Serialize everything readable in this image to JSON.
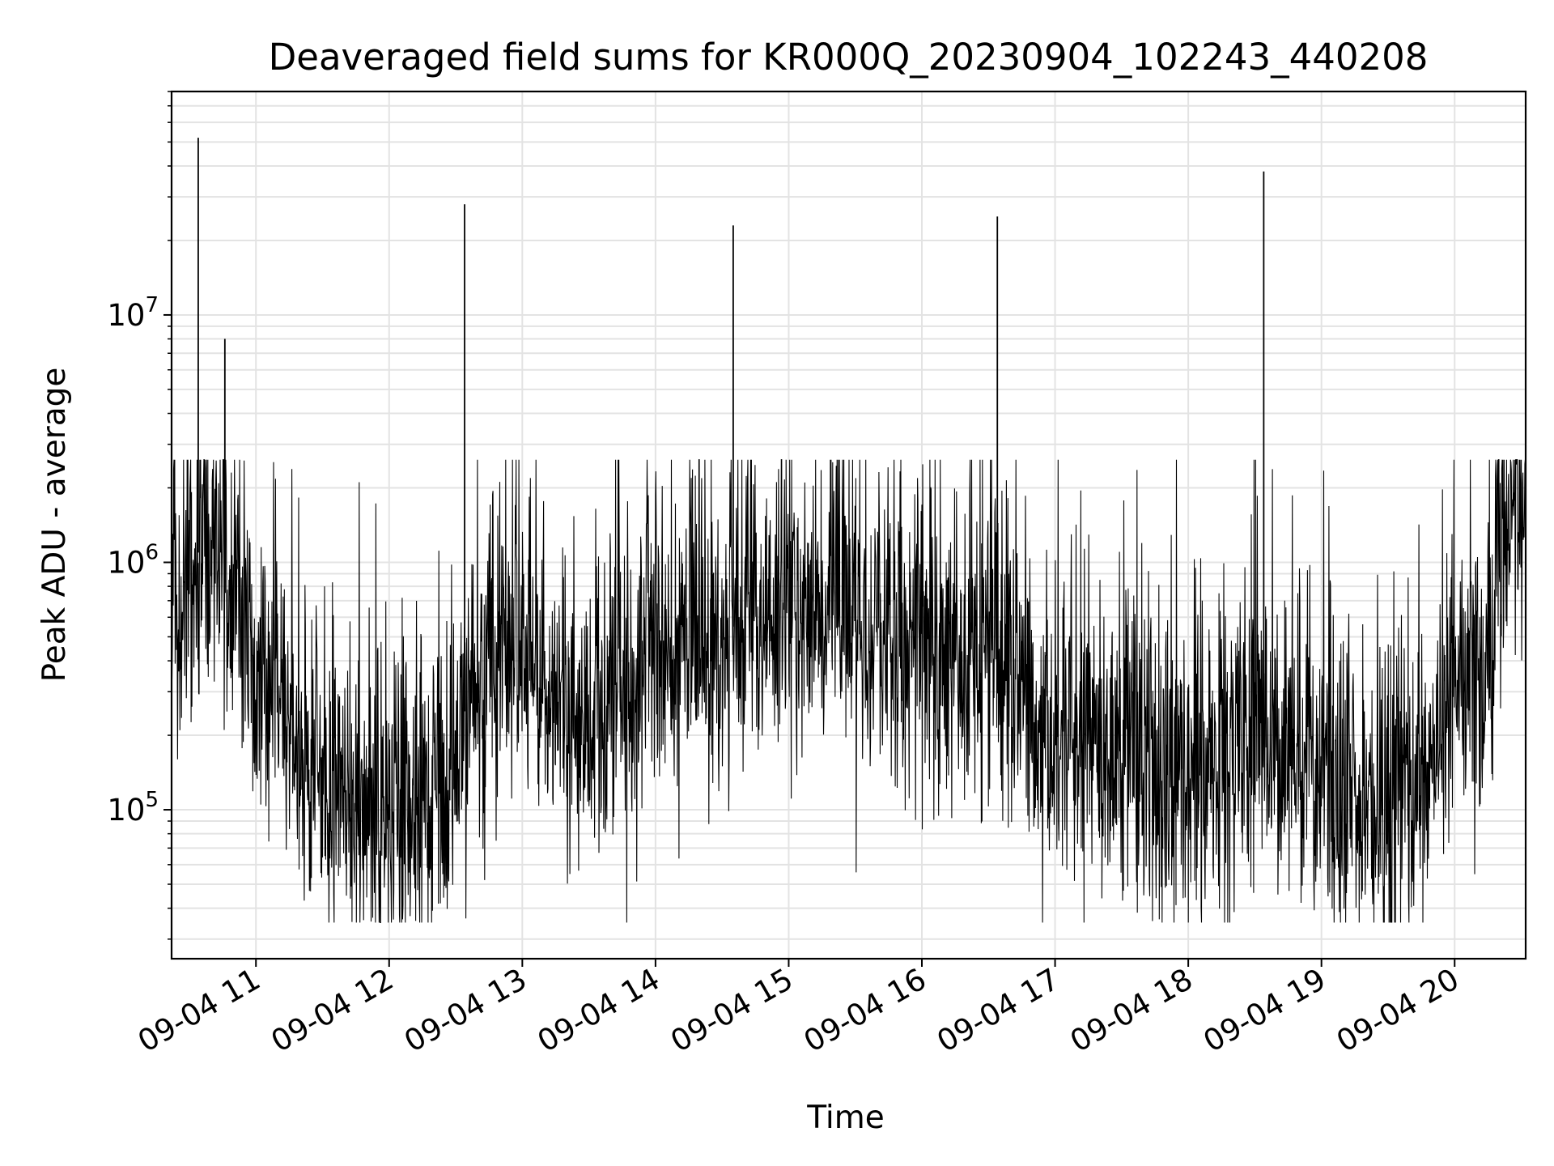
{
  "chart_data": {
    "type": "line",
    "title": "Deaveraged field sums for KR000Q_20230904_102243_440208",
    "xlabel": "Time",
    "ylabel": "Peak ADU - average",
    "yscale": "log",
    "ylim": [
      25000,
      80000000
    ],
    "xlim": [
      "2023-09-04 10:22",
      "2023-09-04 20:32"
    ],
    "x_ticks": [
      "09-04 11",
      "09-04 12",
      "09-04 13",
      "09-04 14",
      "09-04 15",
      "09-04 16",
      "09-04 17",
      "09-04 18",
      "09-04 19",
      "09-04 20"
    ],
    "y_ticks": [
      {
        "base": "10",
        "exp": "5",
        "value": 100000
      },
      {
        "base": "10",
        "exp": "6",
        "value": 1000000
      },
      {
        "base": "10",
        "exp": "7",
        "value": 10000000
      }
    ],
    "grid": true,
    "legend": "none",
    "line_color": "#000000",
    "series": [
      {
        "x": [
          "2023-09-04 10:22",
          "2023-09-04 10:26",
          "2023-09-04 10:29",
          "2023-09-04 10:32",
          "2023-09-04 10:34",
          "2023-09-04 10:36",
          "2023-09-04 10:38",
          "2023-09-04 10:42",
          "2023-09-04 10:45",
          "2023-09-04 10:46",
          "2023-09-04 10:48",
          "2023-09-04 10:52",
          "2023-09-04 10:56",
          "2023-09-04 11:00",
          "2023-09-04 11:03",
          "2023-09-04 11:08",
          "2023-09-04 11:15",
          "2023-09-04 11:22",
          "2023-09-04 11:30",
          "2023-09-04 11:38",
          "2023-09-04 11:42",
          "2023-09-04 11:45",
          "2023-09-04 11:50",
          "2023-09-04 12:00",
          "2023-09-04 12:10",
          "2023-09-04 12:20",
          "2023-09-04 12:25",
          "2023-09-04 12:30",
          "2023-09-04 12:33",
          "2023-09-04 12:34",
          "2023-09-04 12:36",
          "2023-09-04 12:45",
          "2023-09-04 12:55",
          "2023-09-04 13:05",
          "2023-09-04 13:15",
          "2023-09-04 13:30",
          "2023-09-04 13:45",
          "2023-09-04 14:00",
          "2023-09-04 14:15",
          "2023-09-04 14:30",
          "2023-09-04 14:34",
          "2023-09-04 14:35",
          "2023-09-04 14:37",
          "2023-09-04 14:50",
          "2023-09-04 15:05",
          "2023-09-04 15:20",
          "2023-09-04 15:35",
          "2023-09-04 15:50",
          "2023-09-04 15:55",
          "2023-09-04 16:05",
          "2023-09-04 16:20",
          "2023-09-04 16:30",
          "2023-09-04 16:33",
          "2023-09-04 16:34",
          "2023-09-04 16:36",
          "2023-09-04 16:45",
          "2023-09-04 17:00",
          "2023-09-04 17:15",
          "2023-09-04 17:30",
          "2023-09-04 17:45",
          "2023-09-04 18:00",
          "2023-09-04 18:15",
          "2023-09-04 18:30",
          "2023-09-04 18:33",
          "2023-09-04 18:34",
          "2023-09-04 18:36",
          "2023-09-04 18:50",
          "2023-09-04 19:05",
          "2023-09-04 19:20",
          "2023-09-04 19:35",
          "2023-09-04 19:50",
          "2023-09-04 20:00",
          "2023-09-04 20:10",
          "2023-09-04 20:18",
          "2023-09-04 20:20",
          "2023-09-04 20:25",
          "2023-09-04 20:32"
        ],
        "values": [
          700000,
          600000,
          900000,
          1000000,
          52000000,
          1200000,
          1100000,
          1000000,
          1100000,
          8000000,
          800000,
          700000,
          500000,
          400000,
          350000,
          280000,
          200000,
          150000,
          120000,
          110000,
          105000,
          100000,
          100000,
          95000,
          100000,
          110000,
          120000,
          150000,
          250000,
          28000000,
          250000,
          400000,
          500000,
          350000,
          250000,
          200000,
          300000,
          400000,
          450000,
          500000,
          550000,
          23000000,
          550000,
          600000,
          620000,
          620000,
          600000,
          550000,
          450000,
          420000,
          400000,
          380000,
          380000,
          25000000,
          380000,
          300000,
          200000,
          180000,
          160000,
          150000,
          140000,
          150000,
          180000,
          200000,
          38000000,
          180000,
          160000,
          120000,
          100000,
          90000,
          150000,
          300000,
          400000,
          450000,
          1300000,
          1600000,
          1800000
        ]
      }
    ]
  }
}
